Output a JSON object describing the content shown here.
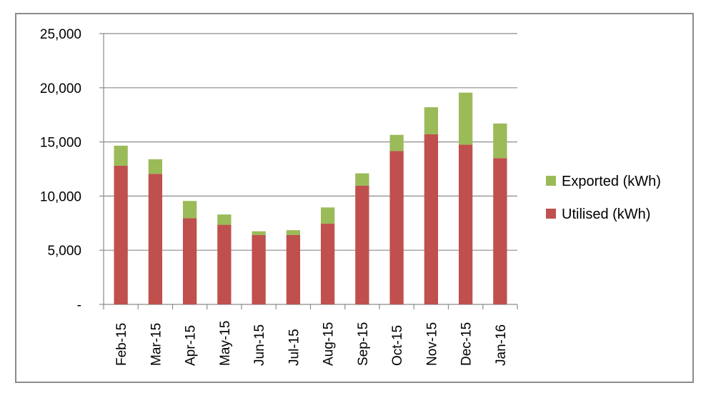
{
  "chart_data": {
    "type": "bar",
    "stacked": true,
    "categories": [
      "Feb-15",
      "Mar-15",
      "Apr-15",
      "May-15",
      "Jun-15",
      "Jul-15",
      "Aug-15",
      "Sep-15",
      "Oct-15",
      "Nov-15",
      "Dec-15",
      "Jan-16"
    ],
    "series": [
      {
        "name": "Utilised (kWh)",
        "color": "#c0504d",
        "values": [
          12800,
          12050,
          7950,
          7350,
          6400,
          6400,
          7450,
          10950,
          14150,
          15700,
          14750,
          13500
        ]
      },
      {
        "name": "Exported (kWh)",
        "color": "#9bbb59",
        "values": [
          1850,
          1350,
          1600,
          950,
          350,
          450,
          1500,
          1150,
          1500,
          2500,
          4800,
          3200
        ]
      }
    ],
    "ylim": [
      0,
      25000
    ],
    "yticks": [
      0,
      5000,
      10000,
      15000,
      20000,
      25000
    ],
    "ytick_labels": [
      "-",
      "5,000",
      "10,000",
      "15,000",
      "20,000",
      "25,000"
    ],
    "grid": "horizontal",
    "legend_position": "right",
    "legend_order": [
      "Exported (kWh)",
      "Utilised (kWh)"
    ]
  }
}
